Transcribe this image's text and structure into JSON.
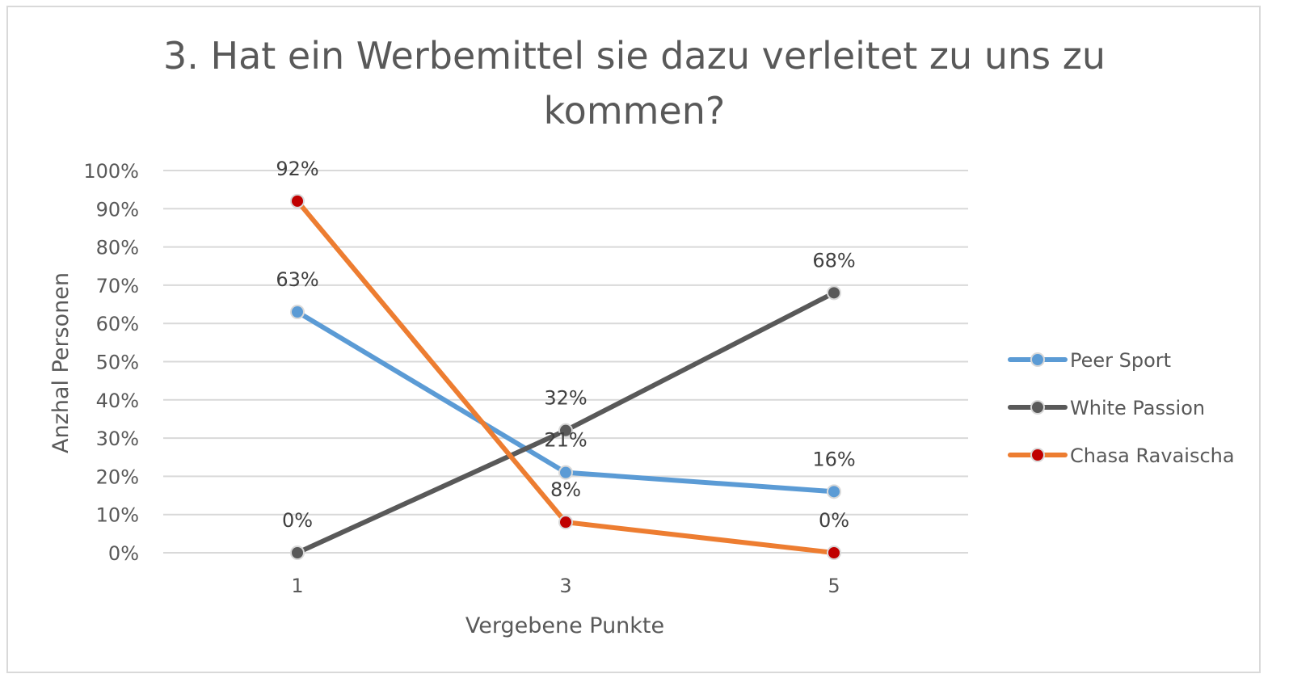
{
  "chart_data": {
    "type": "line",
    "title_lines": [
      "3. Hat ein Werbemittel sie dazu verleitet zu uns zu",
      "kommen?"
    ],
    "xlabel": "Vergebene Punkte",
    "ylabel": "Anzhal Personen",
    "x": [
      "1",
      "3",
      "5"
    ],
    "ylim": [
      0,
      100
    ],
    "y_ticks": [
      "0%",
      "10%",
      "20%",
      "30%",
      "40%",
      "50%",
      "60%",
      "70%",
      "80%",
      "90%",
      "100%"
    ],
    "grid": true,
    "legend_position": "right",
    "series": [
      {
        "name": "Peer Sport",
        "values": [
          63,
          21,
          16
        ],
        "labels": [
          "63%",
          "21%",
          "16%"
        ],
        "color": "#5b9bd5",
        "marker_color": "#5b9bd5"
      },
      {
        "name": "White Passion",
        "values": [
          0,
          32,
          68
        ],
        "labels": [
          "0%",
          "32%",
          "68%"
        ],
        "color": "#595959",
        "marker_color": "#595959"
      },
      {
        "name": "Chasa Ravaischa",
        "values": [
          92,
          8,
          0
        ],
        "labels": [
          "92%",
          "8%",
          "0%"
        ],
        "color": "#ed7d31",
        "marker_color": "#c00000"
      }
    ]
  }
}
